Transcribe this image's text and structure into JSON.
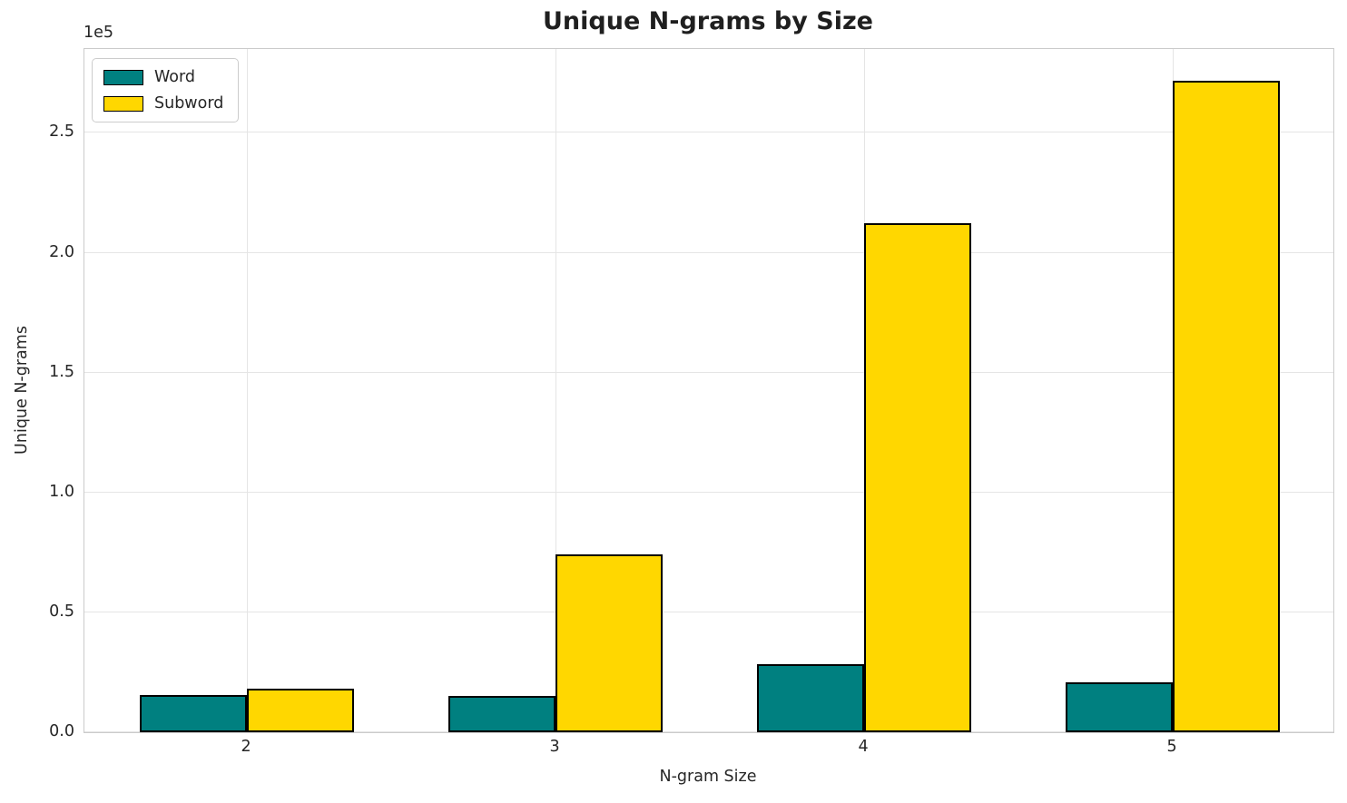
{
  "chart_data": {
    "type": "bar",
    "title": "Unique N-grams by Size",
    "xlabel": "N-gram Size",
    "ylabel": "Unique N-grams",
    "y_offset_text": "1e5",
    "categories": [
      "2",
      "3",
      "4",
      "5"
    ],
    "series": [
      {
        "name": "Word",
        "color": "#008080",
        "values": [
          15500,
          15000,
          28500,
          20700
        ]
      },
      {
        "name": "Subword",
        "color": "#FFD700",
        "values": [
          18000,
          74000,
          212200,
          271600
        ]
      }
    ],
    "bar_edge_color": "#000000",
    "ylim": [
      0,
      285000
    ],
    "yticks": [
      0,
      50000,
      100000,
      150000,
      200000,
      250000
    ],
    "ytick_labels": [
      "0.0",
      "0.5",
      "1.0",
      "1.5",
      "2.0",
      "2.5"
    ],
    "grid": true,
    "legend_position": "upper left",
    "grid_color": "#e5e5e5",
    "spine_color": "#cbcbcb",
    "text_color": "#262626"
  }
}
